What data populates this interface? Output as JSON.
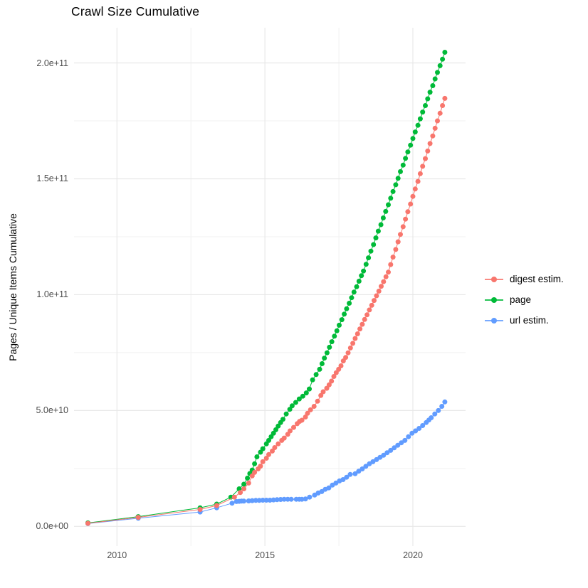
{
  "chart_data": {
    "type": "line",
    "title": "Crawl Size Cumulative",
    "ylabel": "Pages / Unique Items Cumulative",
    "xlabel": "",
    "value_unit": "1e9 (values below are billions of pages/items)",
    "x_ticks": [
      {
        "label": "2010",
        "value": 2010
      },
      {
        "label": "2015",
        "value": 2015
      },
      {
        "label": "2020",
        "value": 2020
      }
    ],
    "x_minor_ticks": [
      2012.5,
      2017.5
    ],
    "y_ticks": [
      {
        "label": "0.0e+00",
        "value": 0
      },
      {
        "label": "5.0e+10",
        "value": 50
      },
      {
        "label": "1.0e+11",
        "value": 100
      },
      {
        "label": "1.5e+11",
        "value": 150
      },
      {
        "label": "2.0e+11",
        "value": 200
      }
    ],
    "y_minor_ticks": [
      25,
      75,
      125,
      175
    ],
    "xlim": [
      2008.55,
      2021.78
    ],
    "ylim": [
      -8.5,
      215.2
    ],
    "grid": true,
    "legend_position": "right",
    "series": [
      {
        "name": "digest estim.",
        "color": "#F8766D",
        "points": [
          [
            2009.02,
            1.3
          ],
          [
            2010.72,
            3.9
          ],
          [
            2012.81,
            7.3
          ],
          [
            2013.37,
            9.0
          ],
          [
            2013.97,
            12.6
          ],
          [
            2014.17,
            14.6
          ],
          [
            2014.29,
            16.2
          ],
          [
            2014.45,
            18.7
          ],
          [
            2014.57,
            21.8
          ],
          [
            2014.65,
            23.3
          ],
          [
            2014.77,
            24.8
          ],
          [
            2014.85,
            26.0
          ],
          [
            2014.93,
            27.9
          ],
          [
            2015.05,
            29.4
          ],
          [
            2015.13,
            31.0
          ],
          [
            2015.25,
            32.5
          ],
          [
            2015.33,
            34.0
          ],
          [
            2015.45,
            35.6
          ],
          [
            2015.57,
            37.1
          ],
          [
            2015.65,
            38.1
          ],
          [
            2015.77,
            39.7
          ],
          [
            2015.85,
            41.2
          ],
          [
            2015.97,
            42.7
          ],
          [
            2016.09,
            44.3
          ],
          [
            2016.17,
            45.3
          ],
          [
            2016.25,
            45.8
          ],
          [
            2016.37,
            47.2
          ],
          [
            2016.44,
            48.8
          ],
          [
            2016.54,
            50.3
          ],
          [
            2016.66,
            51.8
          ],
          [
            2016.78,
            54.0
          ],
          [
            2016.89,
            56.5
          ],
          [
            2016.97,
            58.1
          ],
          [
            2017.09,
            59.6
          ],
          [
            2017.17,
            61.1
          ],
          [
            2017.25,
            62.7
          ],
          [
            2017.33,
            64.7
          ],
          [
            2017.41,
            66.3
          ],
          [
            2017.49,
            67.8
          ],
          [
            2017.57,
            69.3
          ],
          [
            2017.65,
            71.4
          ],
          [
            2017.73,
            72.9
          ],
          [
            2017.81,
            74.9
          ],
          [
            2017.89,
            77.0
          ],
          [
            2017.97,
            79.0
          ],
          [
            2018.05,
            81.1
          ],
          [
            2018.13,
            83.1
          ],
          [
            2018.21,
            85.2
          ],
          [
            2018.29,
            87.2
          ],
          [
            2018.37,
            89.3
          ],
          [
            2018.45,
            91.3
          ],
          [
            2018.53,
            93.4
          ],
          [
            2018.61,
            95.4
          ],
          [
            2018.69,
            97.5
          ],
          [
            2018.77,
            99.5
          ],
          [
            2018.85,
            101.5
          ],
          [
            2018.93,
            103.6
          ],
          [
            2019.01,
            105.6
          ],
          [
            2019.09,
            107.7
          ],
          [
            2019.17,
            109.7
          ],
          [
            2019.25,
            113.0
          ],
          [
            2019.33,
            116.2
          ],
          [
            2019.42,
            119.5
          ],
          [
            2019.5,
            122.8
          ],
          [
            2019.58,
            126.0
          ],
          [
            2019.67,
            129.3
          ],
          [
            2019.75,
            132.6
          ],
          [
            2019.83,
            135.8
          ],
          [
            2019.92,
            139.1
          ],
          [
            2020.0,
            142.4
          ],
          [
            2020.08,
            145.6
          ],
          [
            2020.17,
            148.9
          ],
          [
            2020.25,
            152.2
          ],
          [
            2020.33,
            155.4
          ],
          [
            2020.42,
            158.7
          ],
          [
            2020.5,
            162.0
          ],
          [
            2020.58,
            165.2
          ],
          [
            2020.67,
            168.5
          ],
          [
            2020.75,
            171.8
          ],
          [
            2020.83,
            175.0
          ],
          [
            2020.92,
            178.3
          ],
          [
            2021.0,
            181.6
          ],
          [
            2021.08,
            184.7
          ]
        ]
      },
      {
        "name": "page",
        "color": "#00BA38",
        "points": [
          [
            2009.02,
            1.5
          ],
          [
            2010.72,
            4.2
          ],
          [
            2012.81,
            8.0
          ],
          [
            2013.37,
            9.6
          ],
          [
            2013.85,
            12.6
          ],
          [
            2014.13,
            16.2
          ],
          [
            2014.29,
            18.2
          ],
          [
            2014.41,
            20.8
          ],
          [
            2014.49,
            22.8
          ],
          [
            2014.57,
            24.3
          ],
          [
            2014.65,
            27.0
          ],
          [
            2014.73,
            30.0
          ],
          [
            2014.85,
            32.0
          ],
          [
            2014.93,
            33.5
          ],
          [
            2015.05,
            35.6
          ],
          [
            2015.13,
            37.1
          ],
          [
            2015.21,
            38.7
          ],
          [
            2015.29,
            40.2
          ],
          [
            2015.37,
            41.7
          ],
          [
            2015.45,
            43.3
          ],
          [
            2015.53,
            44.8
          ],
          [
            2015.61,
            46.2
          ],
          [
            2015.72,
            48.5
          ],
          [
            2015.84,
            50.5
          ],
          [
            2015.92,
            52.0
          ],
          [
            2016.04,
            53.5
          ],
          [
            2016.16,
            55.0
          ],
          [
            2016.28,
            56.2
          ],
          [
            2016.4,
            57.6
          ],
          [
            2016.5,
            59.3
          ],
          [
            2016.61,
            63.2
          ],
          [
            2016.73,
            65.5
          ],
          [
            2016.85,
            67.8
          ],
          [
            2016.93,
            70.2
          ],
          [
            2017.01,
            72.6
          ],
          [
            2017.1,
            74.9
          ],
          [
            2017.18,
            77.3
          ],
          [
            2017.26,
            79.7
          ],
          [
            2017.35,
            82.1
          ],
          [
            2017.43,
            84.4
          ],
          [
            2017.51,
            86.8
          ],
          [
            2017.6,
            89.2
          ],
          [
            2017.68,
            91.6
          ],
          [
            2017.76,
            93.9
          ],
          [
            2017.85,
            96.3
          ],
          [
            2017.93,
            98.7
          ],
          [
            2018.01,
            101.1
          ],
          [
            2018.1,
            103.4
          ],
          [
            2018.18,
            105.8
          ],
          [
            2018.26,
            108.2
          ],
          [
            2018.33,
            110.2
          ],
          [
            2018.42,
            113.1
          ],
          [
            2018.5,
            115.9
          ],
          [
            2018.58,
            118.8
          ],
          [
            2018.67,
            121.6
          ],
          [
            2018.75,
            124.5
          ],
          [
            2018.83,
            127.4
          ],
          [
            2018.92,
            130.2
          ],
          [
            2019.0,
            133.1
          ],
          [
            2019.08,
            135.9
          ],
          [
            2019.17,
            138.8
          ],
          [
            2019.25,
            141.6
          ],
          [
            2019.33,
            144.5
          ],
          [
            2019.42,
            147.4
          ],
          [
            2019.5,
            150.2
          ],
          [
            2019.58,
            153.1
          ],
          [
            2019.67,
            155.9
          ],
          [
            2019.75,
            158.8
          ],
          [
            2019.83,
            161.6
          ],
          [
            2019.92,
            164.5
          ],
          [
            2020.0,
            167.4
          ],
          [
            2020.08,
            170.2
          ],
          [
            2020.17,
            173.1
          ],
          [
            2020.25,
            175.9
          ],
          [
            2020.33,
            178.8
          ],
          [
            2020.42,
            181.6
          ],
          [
            2020.5,
            184.5
          ],
          [
            2020.58,
            187.4
          ],
          [
            2020.67,
            190.2
          ],
          [
            2020.75,
            193.1
          ],
          [
            2020.83,
            195.9
          ],
          [
            2020.92,
            198.8
          ],
          [
            2021.0,
            201.6
          ],
          [
            2021.08,
            204.6
          ]
        ]
      },
      {
        "name": "url estim.",
        "color": "#619CFF",
        "points": [
          [
            2009.02,
            1.2
          ],
          [
            2010.72,
            3.5
          ],
          [
            2012.81,
            6.2
          ],
          [
            2013.37,
            8.0
          ],
          [
            2013.89,
            10.0
          ],
          [
            2014.04,
            10.7
          ],
          [
            2014.13,
            10.8
          ],
          [
            2014.21,
            10.9
          ],
          [
            2014.29,
            10.9
          ],
          [
            2014.45,
            11.0
          ],
          [
            2014.57,
            11.1
          ],
          [
            2014.69,
            11.2
          ],
          [
            2014.81,
            11.2
          ],
          [
            2014.93,
            11.3
          ],
          [
            2015.05,
            11.3
          ],
          [
            2015.17,
            11.3
          ],
          [
            2015.29,
            11.4
          ],
          [
            2015.41,
            11.5
          ],
          [
            2015.53,
            11.6
          ],
          [
            2015.65,
            11.7
          ],
          [
            2015.77,
            11.7
          ],
          [
            2015.89,
            11.7
          ],
          [
            2016.06,
            11.7
          ],
          [
            2016.16,
            11.7
          ],
          [
            2016.25,
            11.7
          ],
          [
            2016.37,
            11.8
          ],
          [
            2016.51,
            12.6
          ],
          [
            2016.68,
            13.5
          ],
          [
            2016.8,
            14.4
          ],
          [
            2016.92,
            15.0
          ],
          [
            2017.04,
            16.0
          ],
          [
            2017.16,
            16.6
          ],
          [
            2017.28,
            17.8
          ],
          [
            2017.4,
            18.7
          ],
          [
            2017.52,
            19.6
          ],
          [
            2017.64,
            20.2
          ],
          [
            2017.76,
            21.2
          ],
          [
            2017.88,
            22.4
          ],
          [
            2018.05,
            22.7
          ],
          [
            2018.17,
            23.8
          ],
          [
            2018.29,
            24.8
          ],
          [
            2018.41,
            25.9
          ],
          [
            2018.53,
            27.0
          ],
          [
            2018.65,
            27.9
          ],
          [
            2018.77,
            28.8
          ],
          [
            2018.89,
            29.8
          ],
          [
            2019.01,
            30.7
          ],
          [
            2019.13,
            31.8
          ],
          [
            2019.25,
            32.8
          ],
          [
            2019.37,
            33.9
          ],
          [
            2019.49,
            35.0
          ],
          [
            2019.61,
            36.1
          ],
          [
            2019.73,
            37.1
          ],
          [
            2019.85,
            38.7
          ],
          [
            2019.97,
            40.2
          ],
          [
            2020.09,
            41.2
          ],
          [
            2020.21,
            42.3
          ],
          [
            2020.33,
            43.5
          ],
          [
            2020.45,
            44.8
          ],
          [
            2020.54,
            45.9
          ],
          [
            2020.62,
            46.9
          ],
          [
            2020.74,
            48.5
          ],
          [
            2020.86,
            50.0
          ],
          [
            2020.98,
            51.8
          ],
          [
            2021.08,
            53.7
          ]
        ]
      }
    ],
    "styles": {
      "background": "#FFFFFF",
      "grid_major_color": "#E8E8E8",
      "grid_minor_color": "#F1F1F1",
      "tick_label_color": "#4D4D4D",
      "title_color": "#000000"
    }
  }
}
